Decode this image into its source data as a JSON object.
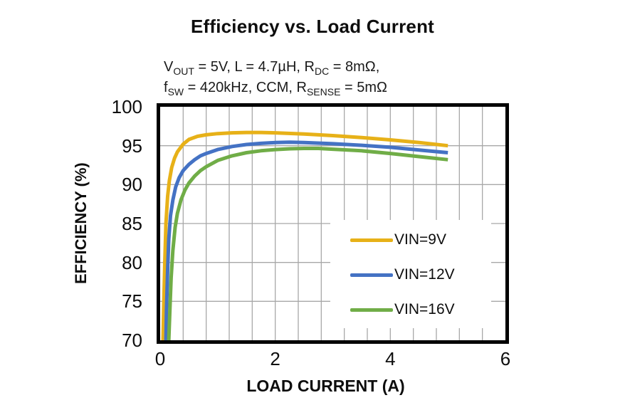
{
  "chart_data": {
    "type": "line",
    "title": "Efficiency vs. Load Current",
    "subtitle_lines": [
      [
        {
          "t": "V"
        },
        {
          "s": "OUT"
        },
        {
          "t": " = 5V, L = 4.7µH, R"
        },
        {
          "s": "DC"
        },
        {
          "t": " = 8mΩ,"
        }
      ],
      [
        {
          "t": "f"
        },
        {
          "s": "SW"
        },
        {
          "t": " = 420kHz, CCM, R"
        },
        {
          "s": "SENSE"
        },
        {
          "t": " = 5mΩ"
        }
      ]
    ],
    "xlabel": "LOAD CURRENT (A)",
    "ylabel": "EFFICIENCY (%)",
    "xlim": [
      0,
      6
    ],
    "ylim": [
      70,
      100
    ],
    "x_ticks": [
      0,
      2,
      4,
      6
    ],
    "y_ticks": [
      70,
      75,
      80,
      85,
      90,
      95,
      100
    ],
    "x_minor_step": 0.4,
    "grid": true,
    "legend_position": "inside-lower-right",
    "colors": {
      "grid": "#a8a8a8",
      "axis_border": "#000000",
      "legend_background": "#ffffff",
      "text": "#0d0d0d"
    },
    "series": [
      {
        "name": "VIN=9V",
        "color": "#e7b118",
        "points": [
          [
            0.05,
            70.0
          ],
          [
            0.06,
            74.0
          ],
          [
            0.08,
            80.0
          ],
          [
            0.1,
            85.0
          ],
          [
            0.13,
            88.5
          ],
          [
            0.16,
            90.5
          ],
          [
            0.2,
            92.2
          ],
          [
            0.25,
            93.4
          ],
          [
            0.3,
            94.2
          ],
          [
            0.4,
            95.2
          ],
          [
            0.5,
            95.8
          ],
          [
            0.65,
            96.2
          ],
          [
            0.8,
            96.4
          ],
          [
            1.0,
            96.55
          ],
          [
            1.25,
            96.65
          ],
          [
            1.5,
            96.7
          ],
          [
            1.75,
            96.7
          ],
          [
            2.0,
            96.65
          ],
          [
            2.5,
            96.5
          ],
          [
            3.0,
            96.3
          ],
          [
            3.5,
            96.05
          ],
          [
            4.0,
            95.75
          ],
          [
            4.5,
            95.4
          ],
          [
            5.0,
            95.0
          ]
        ]
      },
      {
        "name": "VIN=12V",
        "color": "#4472c4",
        "points": [
          [
            0.1,
            70.0
          ],
          [
            0.11,
            74.0
          ],
          [
            0.13,
            79.0
          ],
          [
            0.15,
            83.0
          ],
          [
            0.18,
            86.0
          ],
          [
            0.22,
            88.0
          ],
          [
            0.27,
            89.7
          ],
          [
            0.33,
            90.9
          ],
          [
            0.4,
            91.8
          ],
          [
            0.5,
            92.6
          ],
          [
            0.6,
            93.2
          ],
          [
            0.7,
            93.7
          ],
          [
            0.8,
            94.0
          ],
          [
            1.0,
            94.5
          ],
          [
            1.25,
            94.9
          ],
          [
            1.5,
            95.15
          ],
          [
            1.75,
            95.3
          ],
          [
            2.0,
            95.4
          ],
          [
            2.25,
            95.45
          ],
          [
            2.5,
            95.4
          ],
          [
            3.0,
            95.25
          ],
          [
            3.5,
            95.05
          ],
          [
            4.0,
            94.8
          ],
          [
            4.5,
            94.45
          ],
          [
            5.0,
            94.1
          ]
        ]
      },
      {
        "name": "VIN=16V",
        "color": "#70ad47",
        "points": [
          [
            0.15,
            70.0
          ],
          [
            0.17,
            74.0
          ],
          [
            0.19,
            78.0
          ],
          [
            0.22,
            81.5
          ],
          [
            0.26,
            84.5
          ],
          [
            0.3,
            86.3
          ],
          [
            0.36,
            88.0
          ],
          [
            0.43,
            89.3
          ],
          [
            0.5,
            90.2
          ],
          [
            0.6,
            91.1
          ],
          [
            0.7,
            91.8
          ],
          [
            0.8,
            92.3
          ],
          [
            1.0,
            93.1
          ],
          [
            1.25,
            93.7
          ],
          [
            1.5,
            94.1
          ],
          [
            1.75,
            94.35
          ],
          [
            2.0,
            94.5
          ],
          [
            2.25,
            94.6
          ],
          [
            2.5,
            94.65
          ],
          [
            2.75,
            94.65
          ],
          [
            3.0,
            94.55
          ],
          [
            3.5,
            94.35
          ],
          [
            4.0,
            94.0
          ],
          [
            4.5,
            93.6
          ],
          [
            5.0,
            93.2
          ]
        ]
      }
    ]
  }
}
